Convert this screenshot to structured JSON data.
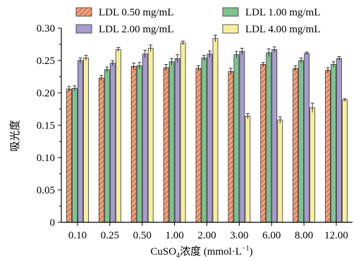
{
  "chart_data": {
    "type": "bar",
    "xlabel_main": "CuSO",
    "xlabel_sub": "4",
    "xlabel_tail": "浓度 (mmol·L",
    "xlabel_sup": "−1",
    "xlabel_close": ")",
    "ylabel": "吸光度",
    "ylim": [
      0,
      0.3
    ],
    "yticks": [
      "0",
      "0.05",
      "0.10",
      "0.15",
      "0.20",
      "0.25",
      "0.30"
    ],
    "categories": [
      "0.10",
      "0.25",
      "0.50",
      "1.00",
      "2.00",
      "3.00",
      "6.00",
      "8.00",
      "12.00"
    ],
    "legend_position": "top",
    "series": [
      {
        "name": "LDL 0.50 mg/mL",
        "color": "#f2a27c",
        "hatch": true,
        "values": [
          0.206,
          0.223,
          0.241,
          0.239,
          0.238,
          0.233,
          0.244,
          0.238,
          0.235
        ],
        "errors": [
          0.004,
          0.004,
          0.005,
          0.005,
          0.004,
          0.005,
          0.003,
          0.004,
          0.004
        ]
      },
      {
        "name": "LDL 1.00 mg/mL",
        "color": "#7cc491",
        "hatch": false,
        "values": [
          0.207,
          0.236,
          0.242,
          0.248,
          0.254,
          0.259,
          0.262,
          0.25,
          0.244
        ],
        "errors": [
          0.004,
          0.004,
          0.005,
          0.005,
          0.004,
          0.005,
          0.006,
          0.004,
          0.004
        ]
      },
      {
        "name": "LDL 2.00 mg/mL",
        "color": "#a79bd0",
        "hatch": false,
        "values": [
          0.25,
          0.246,
          0.26,
          0.253,
          0.26,
          0.264,
          0.267,
          0.261,
          0.253
        ],
        "errors": [
          0.004,
          0.004,
          0.006,
          0.006,
          0.005,
          0.005,
          0.004,
          0.002,
          0.003
        ]
      },
      {
        "name": "LDL 4.00 mg/mL",
        "color": "#f6ef9c",
        "hatch": false,
        "values": [
          0.254,
          0.267,
          0.269,
          0.277,
          0.284,
          0.164,
          0.158,
          0.177,
          0.189
        ],
        "errors": [
          0.004,
          0.003,
          0.005,
          0.003,
          0.005,
          0.004,
          0.005,
          0.007,
          0.002
        ]
      }
    ]
  }
}
